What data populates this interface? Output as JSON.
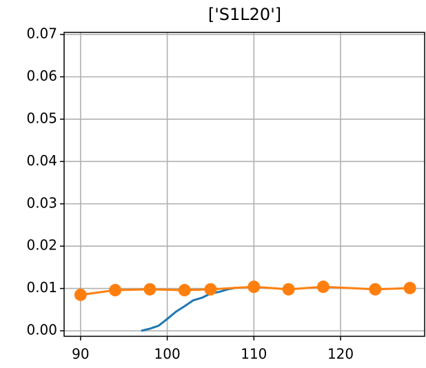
{
  "chart_data": {
    "type": "line",
    "title": "['S1L20']",
    "series": [
      {
        "color": "#1f77b4",
        "marker": false,
        "x": [
          97,
          98,
          99,
          100,
          101,
          102,
          103,
          104,
          105,
          106,
          107,
          108
        ],
        "values": [
          0.0,
          0.0005,
          0.0012,
          0.0028,
          0.0045,
          0.0058,
          0.0072,
          0.0078,
          0.0088,
          0.0092,
          0.0098,
          0.0102
        ]
      },
      {
        "color": "#ff7f0e",
        "marker": true,
        "x": [
          90,
          94,
          98,
          102,
          105,
          110,
          114,
          118,
          124,
          128
        ],
        "values": [
          0.0085,
          0.0096,
          0.0098,
          0.0096,
          0.0098,
          0.0104,
          0.0098,
          0.0104,
          0.0098,
          0.0101
        ]
      }
    ],
    "xlim": [
      88.1,
      129.7
    ],
    "xticks": [
      90,
      100,
      110,
      120
    ],
    "ylim": [
      -0.0013,
      0.0705
    ],
    "yticks": [
      {
        "value": 0,
        "label": "0.00"
      },
      {
        "value": 0.01,
        "label": "0.01"
      },
      {
        "value": 0.02,
        "label": "0.02"
      },
      {
        "value": 0.03,
        "label": "0.03"
      },
      {
        "value": 0.04,
        "label": "0.04"
      },
      {
        "value": 0.05,
        "label": "0.05"
      },
      {
        "value": 0.06,
        "label": "0.06"
      },
      {
        "value": 0.07,
        "label": "0.07"
      }
    ],
    "grid": true
  }
}
